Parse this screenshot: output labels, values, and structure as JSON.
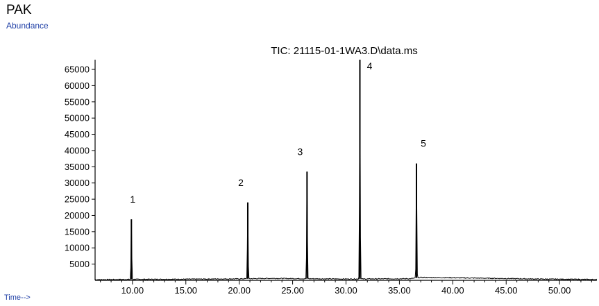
{
  "header": {
    "title": "PAK",
    "y_caption": "Abundance"
  },
  "footer": {
    "x_caption": "Time-->"
  },
  "chart_data": {
    "type": "line",
    "title": "TIC: 21115-01-1WA3.D\\data.ms",
    "xlabel": "Time-->",
    "ylabel": "Abundance",
    "xlim": [
      6.5,
      53.5
    ],
    "ylim": [
      0,
      68000
    ],
    "x_ticks": [
      10,
      15,
      20,
      25,
      30,
      35,
      40,
      45,
      50
    ],
    "x_tick_labels": [
      "10.00",
      "15.00",
      "20.00",
      "25.00",
      "30.00",
      "35.00",
      "40.00",
      "45.00",
      "50.00"
    ],
    "y_ticks": [
      5000,
      10000,
      15000,
      20000,
      25000,
      30000,
      35000,
      40000,
      45000,
      50000,
      55000,
      60000,
      65000
    ],
    "y_tick_labels": [
      "5000",
      "10000",
      "15000",
      "20000",
      "25000",
      "30000",
      "35000",
      "40000",
      "45000",
      "50000",
      "55000",
      "60000",
      "65000"
    ],
    "peaks": [
      {
        "label": "1",
        "x": 9.9,
        "y": 18800
      },
      {
        "label": "2",
        "x": 20.8,
        "y": 24000
      },
      {
        "label": "3",
        "x": 26.35,
        "y": 33500
      },
      {
        "label": "4",
        "x": 31.3,
        "y": 68000
      },
      {
        "label": "5",
        "x": 36.6,
        "y": 36000
      }
    ],
    "baseline": [
      [
        6.5,
        200
      ],
      [
        10.5,
        300
      ],
      [
        15,
        350
      ],
      [
        17,
        400
      ],
      [
        20,
        450
      ],
      [
        23,
        600
      ],
      [
        26,
        500
      ],
      [
        30,
        400
      ],
      [
        36,
        500
      ],
      [
        37,
        900
      ],
      [
        40,
        800
      ],
      [
        44,
        600
      ],
      [
        48,
        400
      ],
      [
        53.5,
        250
      ]
    ],
    "grid": false,
    "legend": "none"
  }
}
